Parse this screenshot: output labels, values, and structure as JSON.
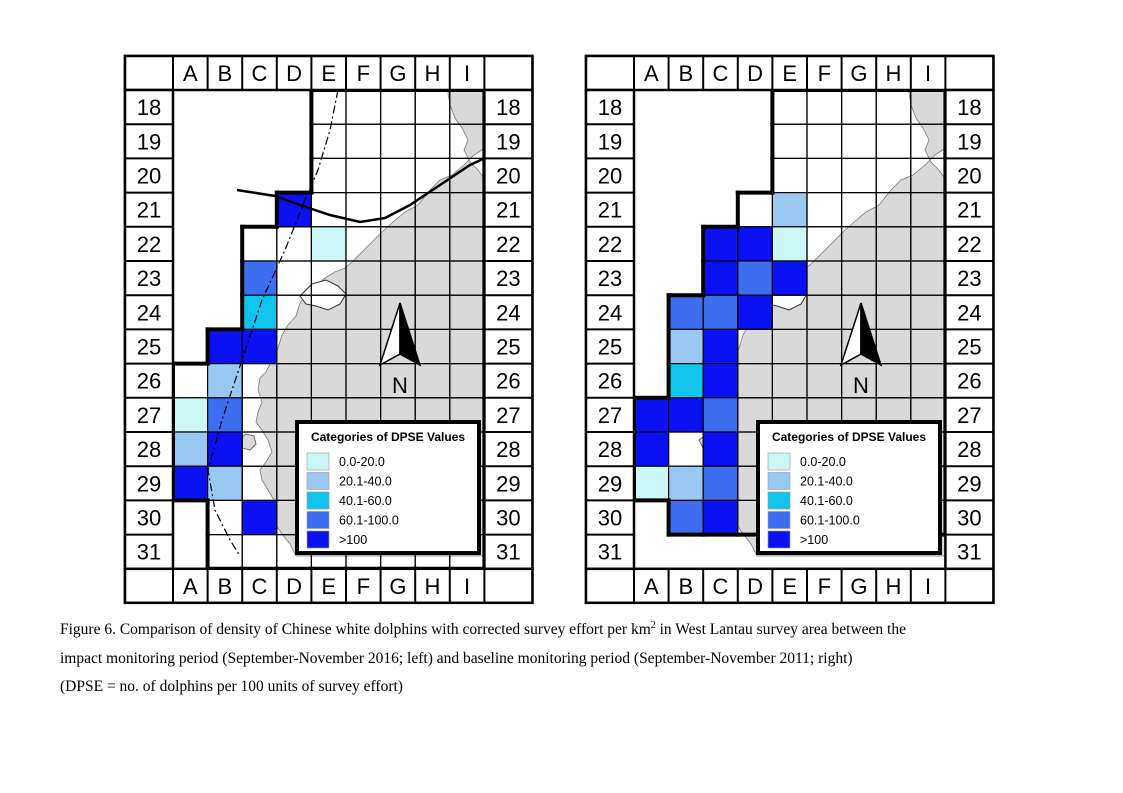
{
  "figure": {
    "columns": [
      "A",
      "B",
      "C",
      "D",
      "E",
      "F",
      "G",
      "H",
      "I"
    ],
    "rows": [
      "18",
      "19",
      "20",
      "21",
      "22",
      "23",
      "24",
      "25",
      "26",
      "27",
      "28",
      "29",
      "30",
      "31"
    ],
    "north_label": "N",
    "legend": {
      "title": "Categories of DPSE Values",
      "items": [
        {
          "label": "0.0-20.0",
          "color": "#ccf7f7"
        },
        {
          "label": "20.1-40.0",
          "color": "#99c8f3"
        },
        {
          "label": "40.1-60.0",
          "color": "#10c4ee"
        },
        {
          "label": "60.1-100.0",
          "color": "#3d6ef0"
        },
        {
          "label": ">100",
          "color": "#0a11f2"
        }
      ]
    },
    "colors": {
      "land": "#d9d9d9",
      "grid": "#000000",
      "empty_cell": "#ffffff"
    },
    "maps": [
      {
        "period": "left",
        "survey_cells": [
          "E18",
          "F18",
          "G18",
          "H18",
          "I18",
          "E19",
          "F19",
          "G19",
          "H19",
          "I19",
          "E20",
          "F20",
          "G20",
          "H20",
          "I20",
          "D21",
          "E21",
          "F21",
          "G21",
          "H21",
          "I21",
          "C22",
          "D22",
          "E22",
          "F22",
          "G22",
          "H22",
          "I22",
          "C23",
          "D23",
          "E23",
          "F23",
          "G23",
          "H23",
          "I23",
          "C24",
          "D24",
          "E24",
          "F24",
          "G24",
          "H24",
          "I24",
          "B25",
          "C25",
          "D25",
          "E25",
          "F25",
          "G25",
          "H25",
          "I25",
          "A26",
          "B26",
          "C26",
          "D26",
          "E26",
          "F26",
          "G26",
          "H26",
          "I26",
          "A27",
          "B27",
          "C27",
          "D27",
          "E27",
          "F27",
          "G27",
          "H27",
          "I27",
          "A28",
          "B28",
          "C28",
          "D28",
          "E28",
          "F28",
          "G28",
          "H28",
          "I28",
          "A29",
          "B29",
          "C29",
          "D29",
          "E29",
          "F29",
          "G29",
          "H29",
          "I29",
          "B30",
          "C30",
          "D30",
          "E30",
          "F30",
          "G30",
          "H30",
          "I30",
          "B31",
          "C31",
          "D31",
          "E31",
          "F31",
          "G31",
          "H31",
          "I31"
        ],
        "dpse_cells": [
          {
            "cell": "D21",
            "category": ">100"
          },
          {
            "cell": "E22",
            "category": "0.0-20.0"
          },
          {
            "cell": "C23",
            "category": "60.1-100.0"
          },
          {
            "cell": "C24",
            "category": "40.1-60.0"
          },
          {
            "cell": "B25",
            "category": ">100"
          },
          {
            "cell": "C25",
            "category": ">100"
          },
          {
            "cell": "B26",
            "category": "20.1-40.0"
          },
          {
            "cell": "A27",
            "category": "0.0-20.0"
          },
          {
            "cell": "B27",
            "category": "60.1-100.0"
          },
          {
            "cell": "A28",
            "category": "20.1-40.0"
          },
          {
            "cell": "B28",
            "category": ">100"
          },
          {
            "cell": "A29",
            "category": ">100"
          },
          {
            "cell": "B29",
            "category": "20.1-40.0"
          },
          {
            "cell": "C30",
            "category": ">100"
          }
        ]
      },
      {
        "period": "right",
        "survey_cells": [
          "E18",
          "F18",
          "G18",
          "H18",
          "I18",
          "E19",
          "F19",
          "G19",
          "H19",
          "I19",
          "E20",
          "F20",
          "G20",
          "H20",
          "I20",
          "D21",
          "E21",
          "F21",
          "G21",
          "H21",
          "I21",
          "C22",
          "D22",
          "E22",
          "F22",
          "G22",
          "H22",
          "I22",
          "C23",
          "D23",
          "E23",
          "F23",
          "G23",
          "H23",
          "I23",
          "B24",
          "C24",
          "D24",
          "E24",
          "F24",
          "G24",
          "H24",
          "I24",
          "B25",
          "C25",
          "D25",
          "E25",
          "F25",
          "G25",
          "H25",
          "I25",
          "B26",
          "C26",
          "D26",
          "E26",
          "F26",
          "G26",
          "H26",
          "I26",
          "A27",
          "B27",
          "C27",
          "D27",
          "E27",
          "F27",
          "G27",
          "H27",
          "I27",
          "A28",
          "B28",
          "C28",
          "D28",
          "E28",
          "F28",
          "G28",
          "H28",
          "I28",
          "A29",
          "B29",
          "C29",
          "D29",
          "E29",
          "F29",
          "G29",
          "H29",
          "I29",
          "B30",
          "C30",
          "D30",
          "E30",
          "F30",
          "G30",
          "H30",
          "I30"
        ],
        "dpse_cells": [
          {
            "cell": "E21",
            "category": "20.1-40.0"
          },
          {
            "cell": "C22",
            "category": ">100"
          },
          {
            "cell": "D22",
            "category": ">100"
          },
          {
            "cell": "E22",
            "category": "0.0-20.0"
          },
          {
            "cell": "C23",
            "category": ">100"
          },
          {
            "cell": "D23",
            "category": "60.1-100.0"
          },
          {
            "cell": "E23",
            "category": ">100"
          },
          {
            "cell": "B24",
            "category": "60.1-100.0"
          },
          {
            "cell": "C24",
            "category": "60.1-100.0"
          },
          {
            "cell": "D24",
            "category": ">100"
          },
          {
            "cell": "B25",
            "category": "20.1-40.0"
          },
          {
            "cell": "C25",
            "category": ">100"
          },
          {
            "cell": "B26",
            "category": "40.1-60.0"
          },
          {
            "cell": "C26",
            "category": ">100"
          },
          {
            "cell": "A27",
            "category": ">100"
          },
          {
            "cell": "B27",
            "category": ">100"
          },
          {
            "cell": "C27",
            "category": "60.1-100.0"
          },
          {
            "cell": "A28",
            "category": ">100"
          },
          {
            "cell": "C28",
            "category": ">100"
          },
          {
            "cell": "A29",
            "category": "0.0-20.0"
          },
          {
            "cell": "B29",
            "category": "20.1-40.0"
          },
          {
            "cell": "C29",
            "category": "60.1-100.0"
          },
          {
            "cell": "B30",
            "category": "60.1-100.0"
          },
          {
            "cell": "C30",
            "category": ">100"
          }
        ]
      }
    ]
  },
  "caption": {
    "line1_pre": "Figure 6.  Comparison of density of Chinese white dolphins with corrected survey effort per km",
    "line1_sup": "2",
    "line1_post": " in West Lantau survey area between the",
    "line2": "impact monitoring period (September-November 2016; left) and baseline monitoring period (September-November 2011; right)",
    "line3": "(DPSE = no. of dolphins per 100 units of survey effort)"
  }
}
